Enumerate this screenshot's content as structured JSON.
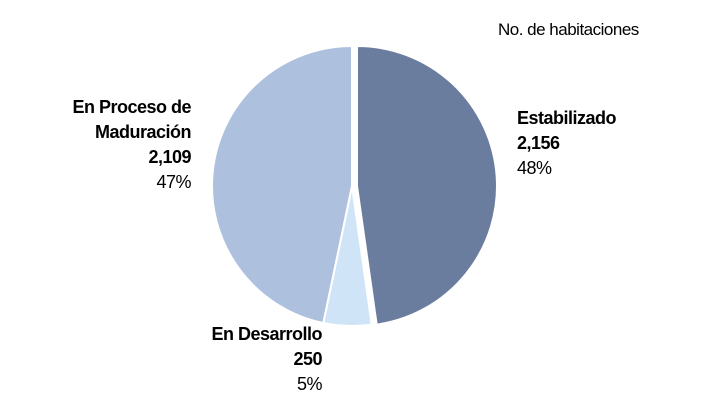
{
  "chart_data": {
    "type": "pie",
    "title": "No. de habitaciones",
    "categories": [
      "Estabilizado",
      "En Desarrollo",
      "En Proceso de Maduración"
    ],
    "values": [
      2156,
      250,
      2109
    ],
    "value_labels": [
      "2,156",
      "250",
      "2,109"
    ],
    "percentages": [
      48,
      5,
      47
    ],
    "percentage_labels": [
      "48%",
      "5%",
      "47%"
    ],
    "colors": [
      "#6b7d9e",
      "#cfe5f7",
      "#adc1de"
    ]
  }
}
